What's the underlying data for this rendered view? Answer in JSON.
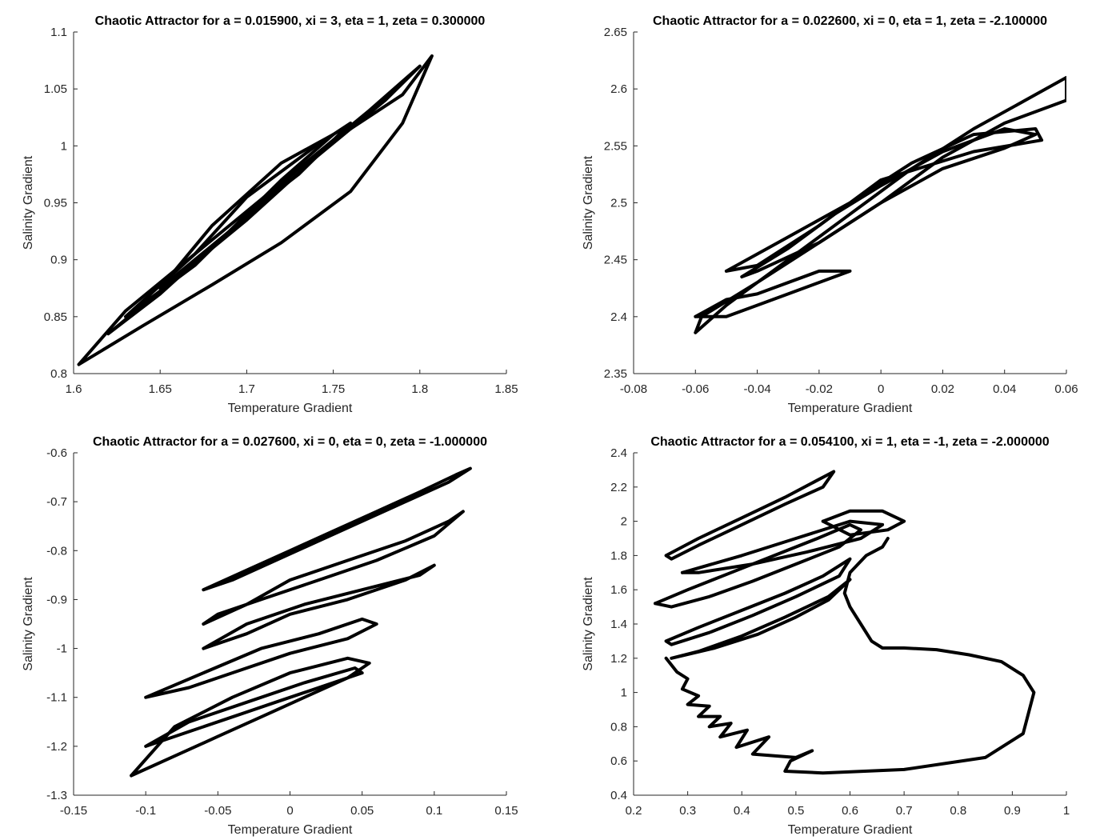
{
  "figure": {
    "colors": {
      "line": "#000000",
      "axis": "#262626",
      "background": "#ffffff"
    }
  },
  "chart_data": [
    {
      "type": "line",
      "title": "Chaotic Attractor for a = 0.015900, xi = 3, eta = 1, zeta = 0.300000",
      "xlabel": "Temperature Gradient",
      "ylabel": "Salinity Gradient",
      "xlim": [
        1.6,
        1.85
      ],
      "ylim": [
        0.8,
        1.1
      ],
      "xticks": [
        "1.6",
        "1.65",
        "1.7",
        "1.75",
        "1.8",
        "1.85"
      ],
      "yticks": [
        "0.8",
        "0.85",
        "0.9",
        "0.95",
        "1",
        "1.05",
        "1.1"
      ],
      "grid": false,
      "series": [
        {
          "x": [
            1.603,
            1.64,
            1.68,
            1.72,
            1.76,
            1.79,
            1.807,
            1.79,
            1.75,
            1.71,
            1.67,
            1.63,
            1.603
          ],
          "y": [
            0.808,
            0.842,
            0.878,
            0.915,
            0.96,
            1.02,
            1.079,
            1.045,
            1.005,
            0.955,
            0.905,
            0.855,
            0.808
          ]
        },
        {
          "x": [
            1.62,
            1.66,
            1.7,
            1.74,
            1.78,
            1.8,
            1.77,
            1.73,
            1.69,
            1.65,
            1.62
          ],
          "y": [
            0.835,
            0.885,
            0.935,
            0.99,
            1.04,
            1.07,
            1.03,
            0.98,
            0.925,
            0.87,
            0.835
          ]
        },
        {
          "x": [
            1.63,
            1.67,
            1.7,
            1.73,
            1.76,
            1.74,
            1.7,
            1.67,
            1.63
          ],
          "y": [
            0.85,
            0.895,
            0.94,
            0.975,
            1.02,
            1.0,
            0.955,
            0.905,
            0.85
          ]
        },
        {
          "x": [
            1.65,
            1.69,
            1.72,
            1.75,
            1.72,
            1.68,
            1.65
          ],
          "y": [
            0.875,
            0.925,
            0.97,
            1.01,
            0.985,
            0.93,
            0.875
          ]
        }
      ]
    },
    {
      "type": "line",
      "title": "Chaotic Attractor for a = 0.022600, xi = 0, eta = 1, zeta = -2.100000",
      "xlabel": "Temperature Gradient",
      "ylabel": "Salinity Gradient",
      "xlim": [
        -0.08,
        0.06
      ],
      "ylim": [
        2.35,
        2.65
      ],
      "xticks": [
        "-0.08",
        "-0.06",
        "-0.04",
        "-0.02",
        "0",
        "0.02",
        "0.04",
        "0.06"
      ],
      "yticks": [
        "2.35",
        "2.4",
        "2.45",
        "2.5",
        "2.55",
        "2.6",
        "2.65"
      ],
      "grid": false,
      "series": [
        {
          "x": [
            -0.06,
            -0.05,
            -0.03,
            -0.01,
            0.01,
            0.03,
            0.05,
            0.06,
            0.06,
            0.04,
            0.02,
            0.0,
            -0.02,
            -0.04,
            -0.058,
            -0.06
          ],
          "y": [
            2.386,
            2.41,
            2.45,
            2.49,
            2.53,
            2.565,
            2.595,
            2.61,
            2.59,
            2.57,
            2.54,
            2.5,
            2.465,
            2.43,
            2.4,
            2.386
          ]
        },
        {
          "x": [
            -0.05,
            -0.03,
            -0.01,
            0.01,
            0.03,
            0.05,
            0.052,
            0.03,
            0.0,
            -0.02,
            -0.04,
            -0.05
          ],
          "y": [
            2.44,
            2.47,
            2.5,
            2.535,
            2.56,
            2.565,
            2.555,
            2.545,
            2.52,
            2.48,
            2.445,
            2.44
          ]
        },
        {
          "x": [
            -0.045,
            -0.03,
            -0.015,
            0.0,
            0.02,
            0.04,
            0.05,
            0.04,
            0.02,
            0.0,
            -0.02,
            -0.04,
            -0.045
          ],
          "y": [
            2.435,
            2.46,
            2.49,
            2.515,
            2.545,
            2.565,
            2.56,
            2.548,
            2.53,
            2.5,
            2.465,
            2.44,
            2.435
          ]
        },
        {
          "x": [
            -0.06,
            -0.05,
            -0.04,
            -0.02,
            -0.01,
            -0.03,
            -0.05,
            -0.06
          ],
          "y": [
            2.4,
            2.415,
            2.42,
            2.44,
            2.44,
            2.42,
            2.4,
            2.4
          ]
        }
      ]
    },
    {
      "type": "line",
      "title": "Chaotic Attractor for a = 0.027600, xi = 0, eta = 0, zeta = -1.000000",
      "xlabel": "Temperature Gradient",
      "ylabel": "Salinity Gradient",
      "xlim": [
        -0.15,
        0.15
      ],
      "ylim": [
        -1.3,
        -0.6
      ],
      "xticks": [
        "-0.15",
        "-0.1",
        "-0.05",
        "0",
        "0.05",
        "0.1",
        "0.15"
      ],
      "yticks": [
        "-1.3",
        "-1.2",
        "-1.1",
        "-1",
        "-0.9",
        "-0.8",
        "-0.7",
        "-0.6"
      ],
      "grid": false,
      "series": [
        {
          "x": [
            -0.06,
            -0.03,
            0.0,
            0.03,
            0.06,
            0.09,
            0.115,
            0.125,
            0.11,
            0.08,
            0.05,
            0.02,
            -0.01,
            -0.04,
            -0.06
          ],
          "y": [
            -0.88,
            -0.84,
            -0.8,
            -0.76,
            -0.72,
            -0.68,
            -0.645,
            -0.632,
            -0.66,
            -0.7,
            -0.74,
            -0.78,
            -0.82,
            -0.86,
            -0.88
          ]
        },
        {
          "x": [
            -0.06,
            -0.03,
            0.0,
            0.04,
            0.08,
            0.11,
            0.12,
            0.1,
            0.06,
            0.02,
            -0.02,
            -0.05,
            -0.06
          ],
          "y": [
            -0.95,
            -0.91,
            -0.86,
            -0.82,
            -0.78,
            -0.74,
            -0.72,
            -0.77,
            -0.82,
            -0.86,
            -0.9,
            -0.93,
            -0.95
          ]
        },
        {
          "x": [
            -0.11,
            -0.08,
            -0.05,
            -0.02,
            0.01,
            0.04,
            0.055,
            0.04,
            0.0,
            -0.04,
            -0.08,
            -0.11
          ],
          "y": [
            -1.26,
            -1.22,
            -1.18,
            -1.14,
            -1.1,
            -1.06,
            -1.03,
            -1.02,
            -1.05,
            -1.1,
            -1.16,
            -1.26
          ]
        },
        {
          "x": [
            -0.1,
            -0.07,
            -0.04,
            0.0,
            0.04,
            0.06,
            0.05,
            0.02,
            -0.02,
            -0.06,
            -0.1
          ],
          "y": [
            -1.1,
            -1.08,
            -1.05,
            -1.01,
            -0.98,
            -0.95,
            -0.94,
            -0.97,
            -1.0,
            -1.05,
            -1.1
          ]
        },
        {
          "x": [
            -0.06,
            -0.03,
            0.0,
            0.04,
            0.08,
            0.1,
            0.09,
            0.05,
            0.01,
            -0.03,
            -0.06
          ],
          "y": [
            -1.0,
            -0.97,
            -0.93,
            -0.9,
            -0.86,
            -0.83,
            -0.85,
            -0.88,
            -0.91,
            -0.95,
            -1.0
          ]
        },
        {
          "x": [
            -0.1,
            -0.07,
            -0.04,
            -0.01,
            0.02,
            0.05,
            0.045,
            0.01,
            -0.03,
            -0.07,
            -0.1
          ],
          "y": [
            -1.2,
            -1.17,
            -1.14,
            -1.11,
            -1.08,
            -1.05,
            -1.04,
            -1.07,
            -1.11,
            -1.15,
            -1.2
          ]
        }
      ]
    },
    {
      "type": "line",
      "title": "Chaotic Attractor for a = 0.054100, xi = 1, eta = -1, zeta = -2.000000",
      "xlabel": "Temperature Gradient",
      "ylabel": "Salinity Gradient",
      "xlim": [
        0.2,
        1
      ],
      "ylim": [
        0.4,
        2.4
      ],
      "xticks": [
        "0.2",
        "0.3",
        "0.4",
        "0.5",
        "0.6",
        "0.7",
        "0.8",
        "0.9",
        "1"
      ],
      "yticks": [
        "0.4",
        "0.6",
        "0.8",
        "1",
        "1.2",
        "1.4",
        "1.6",
        "1.8",
        "2",
        "2.2",
        "2.4"
      ],
      "grid": false,
      "series": [
        {
          "x": [
            0.26,
            0.32,
            0.4,
            0.48,
            0.54,
            0.57,
            0.55,
            0.48,
            0.4,
            0.32,
            0.27,
            0.26
          ],
          "y": [
            1.8,
            1.9,
            2.02,
            2.14,
            2.24,
            2.29,
            2.2,
            2.1,
            1.98,
            1.86,
            1.78,
            1.8
          ]
        },
        {
          "x": [
            0.24,
            0.3,
            0.38,
            0.46,
            0.54,
            0.6,
            0.62,
            0.58,
            0.5,
            0.42,
            0.34,
            0.27,
            0.24
          ],
          "y": [
            1.52,
            1.6,
            1.7,
            1.8,
            1.9,
            1.98,
            1.95,
            1.85,
            1.75,
            1.65,
            1.56,
            1.5,
            1.52
          ]
        },
        {
          "x": [
            0.26,
            0.32,
            0.4,
            0.48,
            0.55,
            0.6,
            0.58,
            0.5,
            0.42,
            0.34,
            0.27,
            0.26
          ],
          "y": [
            1.3,
            1.38,
            1.48,
            1.58,
            1.68,
            1.78,
            1.68,
            1.56,
            1.45,
            1.35,
            1.28,
            1.3
          ]
        },
        {
          "x": [
            0.27,
            0.35,
            0.43,
            0.5,
            0.56,
            0.6,
            0.56,
            0.48,
            0.4,
            0.32,
            0.27
          ],
          "y": [
            1.2,
            1.26,
            1.34,
            1.44,
            1.54,
            1.66,
            1.56,
            1.44,
            1.33,
            1.24,
            1.2
          ]
        },
        {
          "x": [
            0.29,
            0.4,
            0.5,
            0.6,
            0.66,
            0.62,
            0.52,
            0.42,
            0.32,
            0.29
          ],
          "y": [
            1.7,
            1.8,
            1.9,
            2.0,
            1.98,
            1.9,
            1.82,
            1.75,
            1.7,
            1.7
          ]
        },
        {
          "x": [
            0.26,
            0.28,
            0.3,
            0.29,
            0.32,
            0.3,
            0.34,
            0.32,
            0.36,
            0.34,
            0.38,
            0.36,
            0.41,
            0.39,
            0.45,
            0.42,
            0.5,
            0.53,
            0.49,
            0.48,
            0.55,
            0.7,
            0.85,
            0.92,
            0.94,
            0.92,
            0.88,
            0.82,
            0.76,
            0.7,
            0.66,
            0.64,
            0.62,
            0.6,
            0.59,
            0.6,
            0.63,
            0.66,
            0.67
          ],
          "y": [
            1.2,
            1.12,
            1.08,
            1.02,
            0.98,
            0.93,
            0.92,
            0.86,
            0.86,
            0.8,
            0.82,
            0.74,
            0.78,
            0.68,
            0.74,
            0.64,
            0.62,
            0.66,
            0.6,
            0.54,
            0.53,
            0.55,
            0.62,
            0.76,
            1.0,
            1.1,
            1.18,
            1.22,
            1.25,
            1.26,
            1.26,
            1.3,
            1.4,
            1.5,
            1.58,
            1.7,
            1.8,
            1.85,
            1.9
          ]
        },
        {
          "x": [
            0.55,
            0.6,
            0.66,
            0.7,
            0.67,
            0.6,
            0.55
          ],
          "y": [
            2.0,
            2.06,
            2.06,
            2.0,
            1.95,
            1.92,
            2.0
          ]
        }
      ]
    }
  ]
}
